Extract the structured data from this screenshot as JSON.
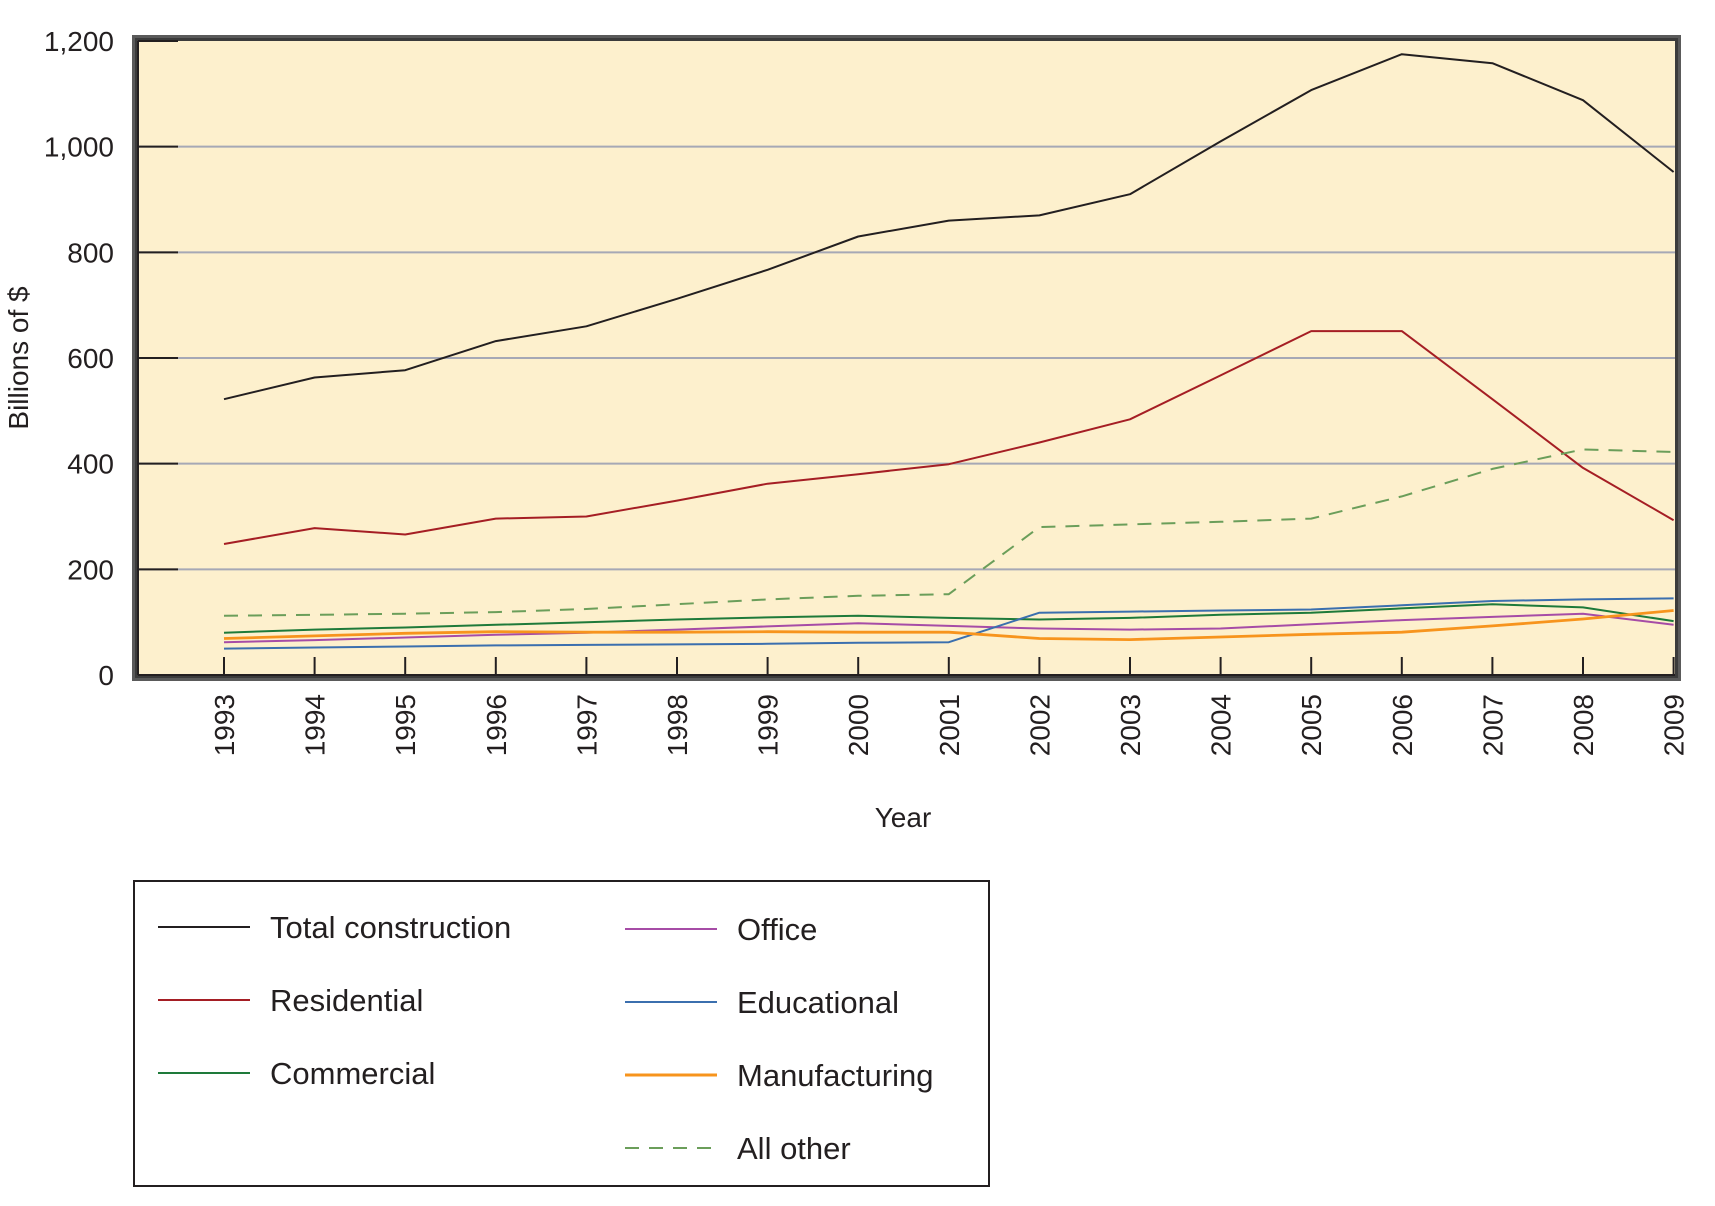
{
  "colors": {
    "plot_background": "#fdf0cd",
    "gridline": "#a6a8b5",
    "axis": "#231f20",
    "frame_shadow": "#5a5a5a",
    "legend_border": "#231f20"
  },
  "chart_data": {
    "type": "line",
    "title": "",
    "xlabel": "Year",
    "ylabel": "Billions of $",
    "ylim": [
      0,
      1200
    ],
    "yticks": [
      "0",
      "200",
      "400",
      "600",
      "800",
      "1,000",
      "1,200"
    ],
    "ytick_values": [
      0,
      200,
      400,
      600,
      800,
      1000,
      1200
    ],
    "x": [
      "1993",
      "1994",
      "1995",
      "1996",
      "1997",
      "1998",
      "1999",
      "2000",
      "2001",
      "2002",
      "2003",
      "2004",
      "2005",
      "2006",
      "2007",
      "2008",
      "2009"
    ],
    "grid": true,
    "legend_position": "below",
    "series": [
      {
        "name": "Total construction",
        "color": "#231f20",
        "dashed": false,
        "values": [
          522,
          563,
          577,
          632,
          660,
          712,
          767,
          830,
          860,
          870,
          910,
          1010,
          1107,
          1175,
          1158,
          1088,
          952
        ]
      },
      {
        "name": "Residential",
        "color": "#a51e24",
        "dashed": false,
        "values": [
          248,
          278,
          266,
          296,
          300,
          330,
          362,
          380,
          399,
          440,
          484,
          567,
          651,
          651,
          522,
          392,
          293
        ]
      },
      {
        "name": "Commercial",
        "color": "#1e7a3a",
        "dashed": false,
        "values": [
          80,
          86,
          90,
          95,
          100,
          105,
          109,
          112,
          108,
          105,
          108,
          114,
          118,
          126,
          134,
          128,
          102
        ]
      },
      {
        "name": "Office",
        "color": "#a64ca6",
        "dashed": false,
        "values": [
          62,
          66,
          71,
          76,
          80,
          86,
          92,
          98,
          93,
          88,
          86,
          88,
          96,
          104,
          110,
          116,
          95
        ]
      },
      {
        "name": "Educational",
        "color": "#3b6fae",
        "dashed": false,
        "values": [
          50,
          52,
          54,
          56,
          57,
          58,
          59,
          61,
          62,
          118,
          120,
          122,
          124,
          132,
          140,
          143,
          145
        ]
      },
      {
        "name": "Manufacturing",
        "color": "#f7941d",
        "dashed": false,
        "values": [
          69,
          74,
          79,
          82,
          81,
          81,
          82,
          81,
          81,
          69,
          67,
          72,
          77,
          81,
          93,
          106,
          122
        ]
      },
      {
        "name": "All other",
        "color": "#6b9e5a",
        "dashed": true,
        "values": [
          112,
          114,
          116,
          119,
          125,
          134,
          143,
          150,
          153,
          280,
          285,
          290,
          296,
          338,
          390,
          427,
          422
        ]
      }
    ]
  }
}
